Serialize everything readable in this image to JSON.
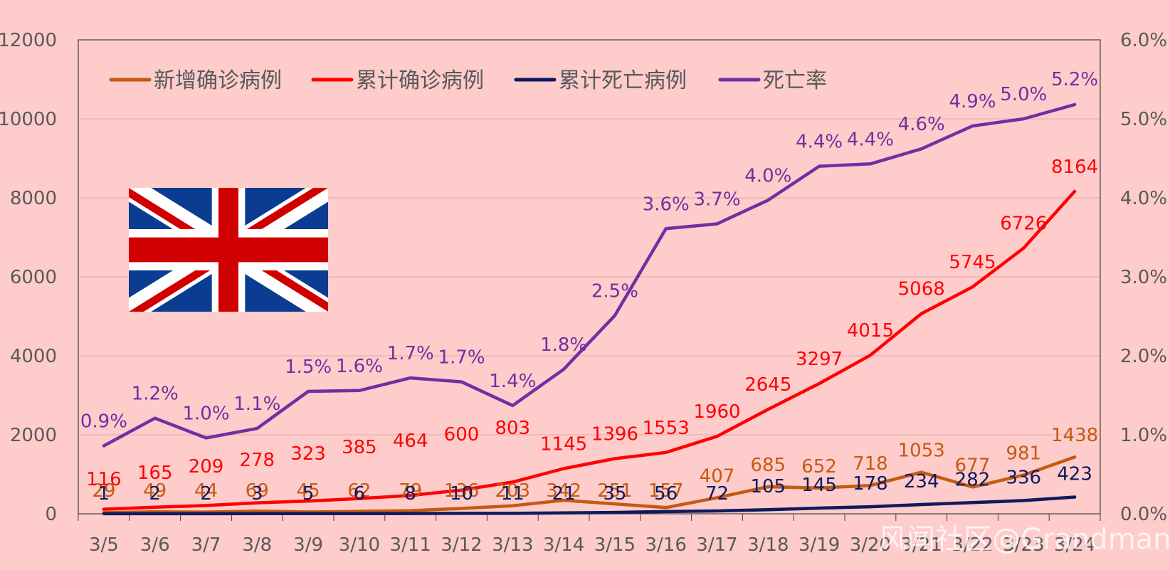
{
  "chart_data": {
    "type": "line",
    "categories": [
      "3/5",
      "3/6",
      "3/7",
      "3/8",
      "3/9",
      "3/10",
      "3/11",
      "3/12",
      "3/13",
      "3/14",
      "3/15",
      "3/16",
      "3/17",
      "3/18",
      "3/19",
      "3/20",
      "3/21",
      "3/22",
      "3/23",
      "3/24"
    ],
    "y_left": {
      "ylim": [
        0,
        12000
      ],
      "ticks": [
        "0",
        "2000",
        "4000",
        "6000",
        "8000",
        "10000",
        "12000"
      ]
    },
    "y_right": {
      "ylim": [
        0,
        0.06
      ],
      "ticks": [
        "0.0%",
        "1.0%",
        "2.0%",
        "3.0%",
        "4.0%",
        "5.0%",
        "6.0%"
      ]
    },
    "grid": true,
    "legend_position": "top-left",
    "series": [
      {
        "name": "新增确诊病例",
        "axis": "left",
        "color": "#c55a11",
        "values": [
          29,
          49,
          44,
          69,
          45,
          62,
          79,
          136,
          203,
          342,
          251,
          157,
          407,
          685,
          652,
          718,
          1053,
          677,
          981,
          1438
        ],
        "labels": [
          "29",
          "49",
          "44",
          "69",
          "45",
          "62",
          "79",
          "136",
          "203",
          "342",
          "251",
          "157",
          "407",
          "685",
          "652",
          "718",
          "1053",
          "677",
          "981",
          "1438"
        ]
      },
      {
        "name": "累计确诊病例",
        "axis": "left",
        "color": "#ff0000",
        "values": [
          116,
          165,
          209,
          278,
          323,
          385,
          464,
          600,
          803,
          1145,
          1396,
          1553,
          1960,
          2645,
          3297,
          4015,
          5068,
          5745,
          6726,
          8164
        ],
        "labels": [
          "116",
          "165",
          "209",
          "278",
          "323",
          "385",
          "464",
          "600",
          "803",
          "1145",
          "1396",
          "1553",
          "1960",
          "2645",
          "3297",
          "4015",
          "5068",
          "5745",
          "6726",
          "8164"
        ]
      },
      {
        "name": "累计死亡病例",
        "axis": "left",
        "color": "#0d1b5e",
        "values": [
          1,
          2,
          2,
          3,
          5,
          6,
          8,
          10,
          11,
          21,
          35,
          56,
          72,
          105,
          145,
          178,
          234,
          282,
          336,
          423
        ],
        "labels": [
          "1",
          "2",
          "2",
          "3",
          "5",
          "6",
          "8",
          "10",
          "11",
          "21",
          "35",
          "56",
          "72",
          "105",
          "145",
          "178",
          "234",
          "282",
          "336",
          "423"
        ]
      },
      {
        "name": "死亡率",
        "axis": "right",
        "color": "#7030a0",
        "values": [
          0.0086,
          0.0121,
          0.0096,
          0.0108,
          0.0155,
          0.0156,
          0.0172,
          0.0167,
          0.0137,
          0.0183,
          0.0251,
          0.0361,
          0.0367,
          0.0397,
          0.044,
          0.0443,
          0.0462,
          0.0491,
          0.05,
          0.0518
        ],
        "labels": [
          "0.9%",
          "1.2%",
          "1.0%",
          "1.1%",
          "1.5%",
          "1.6%",
          "1.7%",
          "1.7%",
          "1.4%",
          "1.8%",
          "2.5%",
          "3.6%",
          "3.7%",
          "4.0%",
          "4.4%",
          "4.4%",
          "4.6%",
          "4.9%",
          "5.0%",
          "5.2%"
        ]
      }
    ]
  },
  "image": {
    "flag": "union-jack-flag",
    "watermark": "风闻社区@Grandman"
  }
}
